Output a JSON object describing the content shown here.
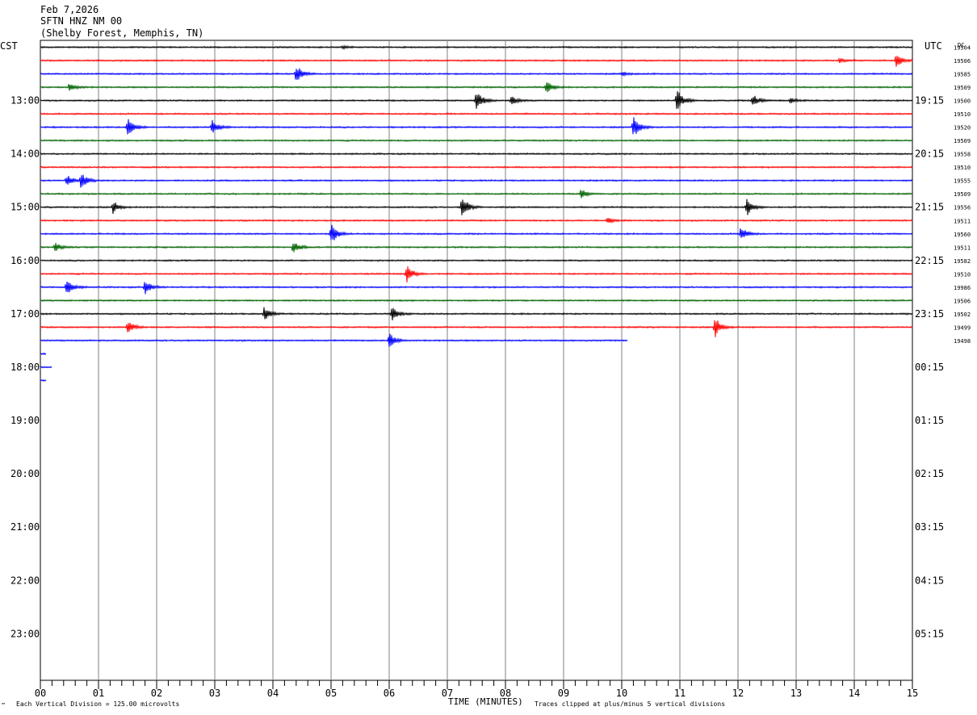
{
  "header": {
    "date": "Feb 7,2026",
    "station": "SFTN HNZ NM 00",
    "location": "(Shelby Forest, Memphis, TN)"
  },
  "left_axis_label": "CST",
  "right_axis_label": "UTC",
  "right_corner_label": "DC",
  "footer": {
    "scale_note": "Each Vertical Division =  125.00 microvolts",
    "xlabel": "TIME (MINUTES)",
    "clip_note": "Traces clipped at plus/minus 5 vertical divisions",
    "corner_mark": "™"
  },
  "colors": {
    "black": "#000000",
    "red": "#ff0000",
    "blue": "#0000ff",
    "green": "#006400",
    "grid": "#808080"
  },
  "chart_data": {
    "type": "line",
    "title": "",
    "xlabel": "TIME (MINUTES)",
    "ylabel": "",
    "xlim": [
      0,
      15
    ],
    "x_ticks": [
      "00",
      "01",
      "02",
      "03",
      "04",
      "05",
      "06",
      "07",
      "08",
      "09",
      "10",
      "11",
      "12",
      "13",
      "14",
      "15"
    ],
    "left_ticks": [
      "13:00",
      "14:00",
      "15:00",
      "16:00",
      "17:00",
      "18:00",
      "19:00",
      "20:00",
      "21:00",
      "22:00",
      "23:00"
    ],
    "right_ticks": [
      "19:15",
      "20:15",
      "21:15",
      "22:15",
      "23:15",
      "00:15",
      "01:15",
      "02:15",
      "03:15",
      "04:15",
      "05:15"
    ],
    "series": [
      {
        "color": "black",
        "dc": "19504",
        "events": [
          [
            5.2,
            0.3
          ]
        ]
      },
      {
        "color": "red",
        "dc": "19506",
        "events": [
          [
            13.75,
            0.4
          ],
          [
            14.72,
            1.6
          ]
        ]
      },
      {
        "color": "blue",
        "dc": "19585",
        "events": [
          [
            4.4,
            2.0
          ],
          [
            10.0,
            0.4
          ]
        ]
      },
      {
        "color": "green",
        "dc": "19509",
        "events": [
          [
            0.5,
            1.0
          ],
          [
            8.7,
            1.4
          ]
        ]
      },
      {
        "color": "black",
        "dc": "19500",
        "events": [
          [
            7.5,
            2.3
          ],
          [
            8.1,
            0.9
          ],
          [
            10.95,
            2.4
          ],
          [
            12.25,
            1.5
          ],
          [
            12.9,
            0.5
          ]
        ]
      },
      {
        "color": "red",
        "dc": "19510",
        "events": []
      },
      {
        "color": "blue",
        "dc": "19520",
        "events": [
          [
            1.5,
            2.3
          ],
          [
            2.95,
            1.5
          ],
          [
            10.2,
            2.3
          ]
        ]
      },
      {
        "color": "green",
        "dc": "19509",
        "events": []
      },
      {
        "color": "black",
        "dc": "19558",
        "events": []
      },
      {
        "color": "red",
        "dc": "19510",
        "events": []
      },
      {
        "color": "blue",
        "dc": "19555",
        "events": [
          [
            0.45,
            1.2
          ],
          [
            0.7,
            1.6
          ]
        ]
      },
      {
        "color": "green",
        "dc": "19509",
        "events": [
          [
            9.3,
            1.0
          ]
        ]
      },
      {
        "color": "black",
        "dc": "19556",
        "events": [
          [
            1.25,
            1.3
          ],
          [
            7.25,
            2.5
          ],
          [
            12.15,
            1.8
          ]
        ]
      },
      {
        "color": "red",
        "dc": "19511",
        "events": [
          [
            9.75,
            0.6
          ]
        ]
      },
      {
        "color": "blue",
        "dc": "19560",
        "events": [
          [
            5.0,
            2.4
          ],
          [
            12.05,
            1.5
          ]
        ]
      },
      {
        "color": "green",
        "dc": "19511",
        "events": [
          [
            0.25,
            1.0
          ],
          [
            4.35,
            1.4
          ]
        ]
      },
      {
        "color": "black",
        "dc": "19582",
        "events": []
      },
      {
        "color": "red",
        "dc": "19510",
        "events": [
          [
            6.3,
            1.8
          ]
        ]
      },
      {
        "color": "blue",
        "dc": "19986",
        "events": [
          [
            0.45,
            1.6
          ],
          [
            1.8,
            1.5
          ]
        ]
      },
      {
        "color": "green",
        "dc": "19506",
        "events": []
      },
      {
        "color": "black",
        "dc": "19502",
        "events": [
          [
            3.85,
            1.5
          ],
          [
            6.05,
            1.5
          ]
        ]
      },
      {
        "color": "red",
        "dc": "19499",
        "events": [
          [
            1.5,
            1.3
          ],
          [
            11.6,
            2.3
          ]
        ]
      },
      {
        "color": "blue",
        "dc": "19498",
        "events": [
          [
            6.0,
            1.6
          ]
        ],
        "end_minute": 10.1
      },
      {
        "color": "blue",
        "dc": "",
        "events": [],
        "end_minute": 0.1
      },
      {
        "color": "blue",
        "dc": "",
        "events": [],
        "end_minute": 0.2
      },
      {
        "color": "blue",
        "dc": "",
        "events": [],
        "end_minute": 0.1
      }
    ]
  }
}
